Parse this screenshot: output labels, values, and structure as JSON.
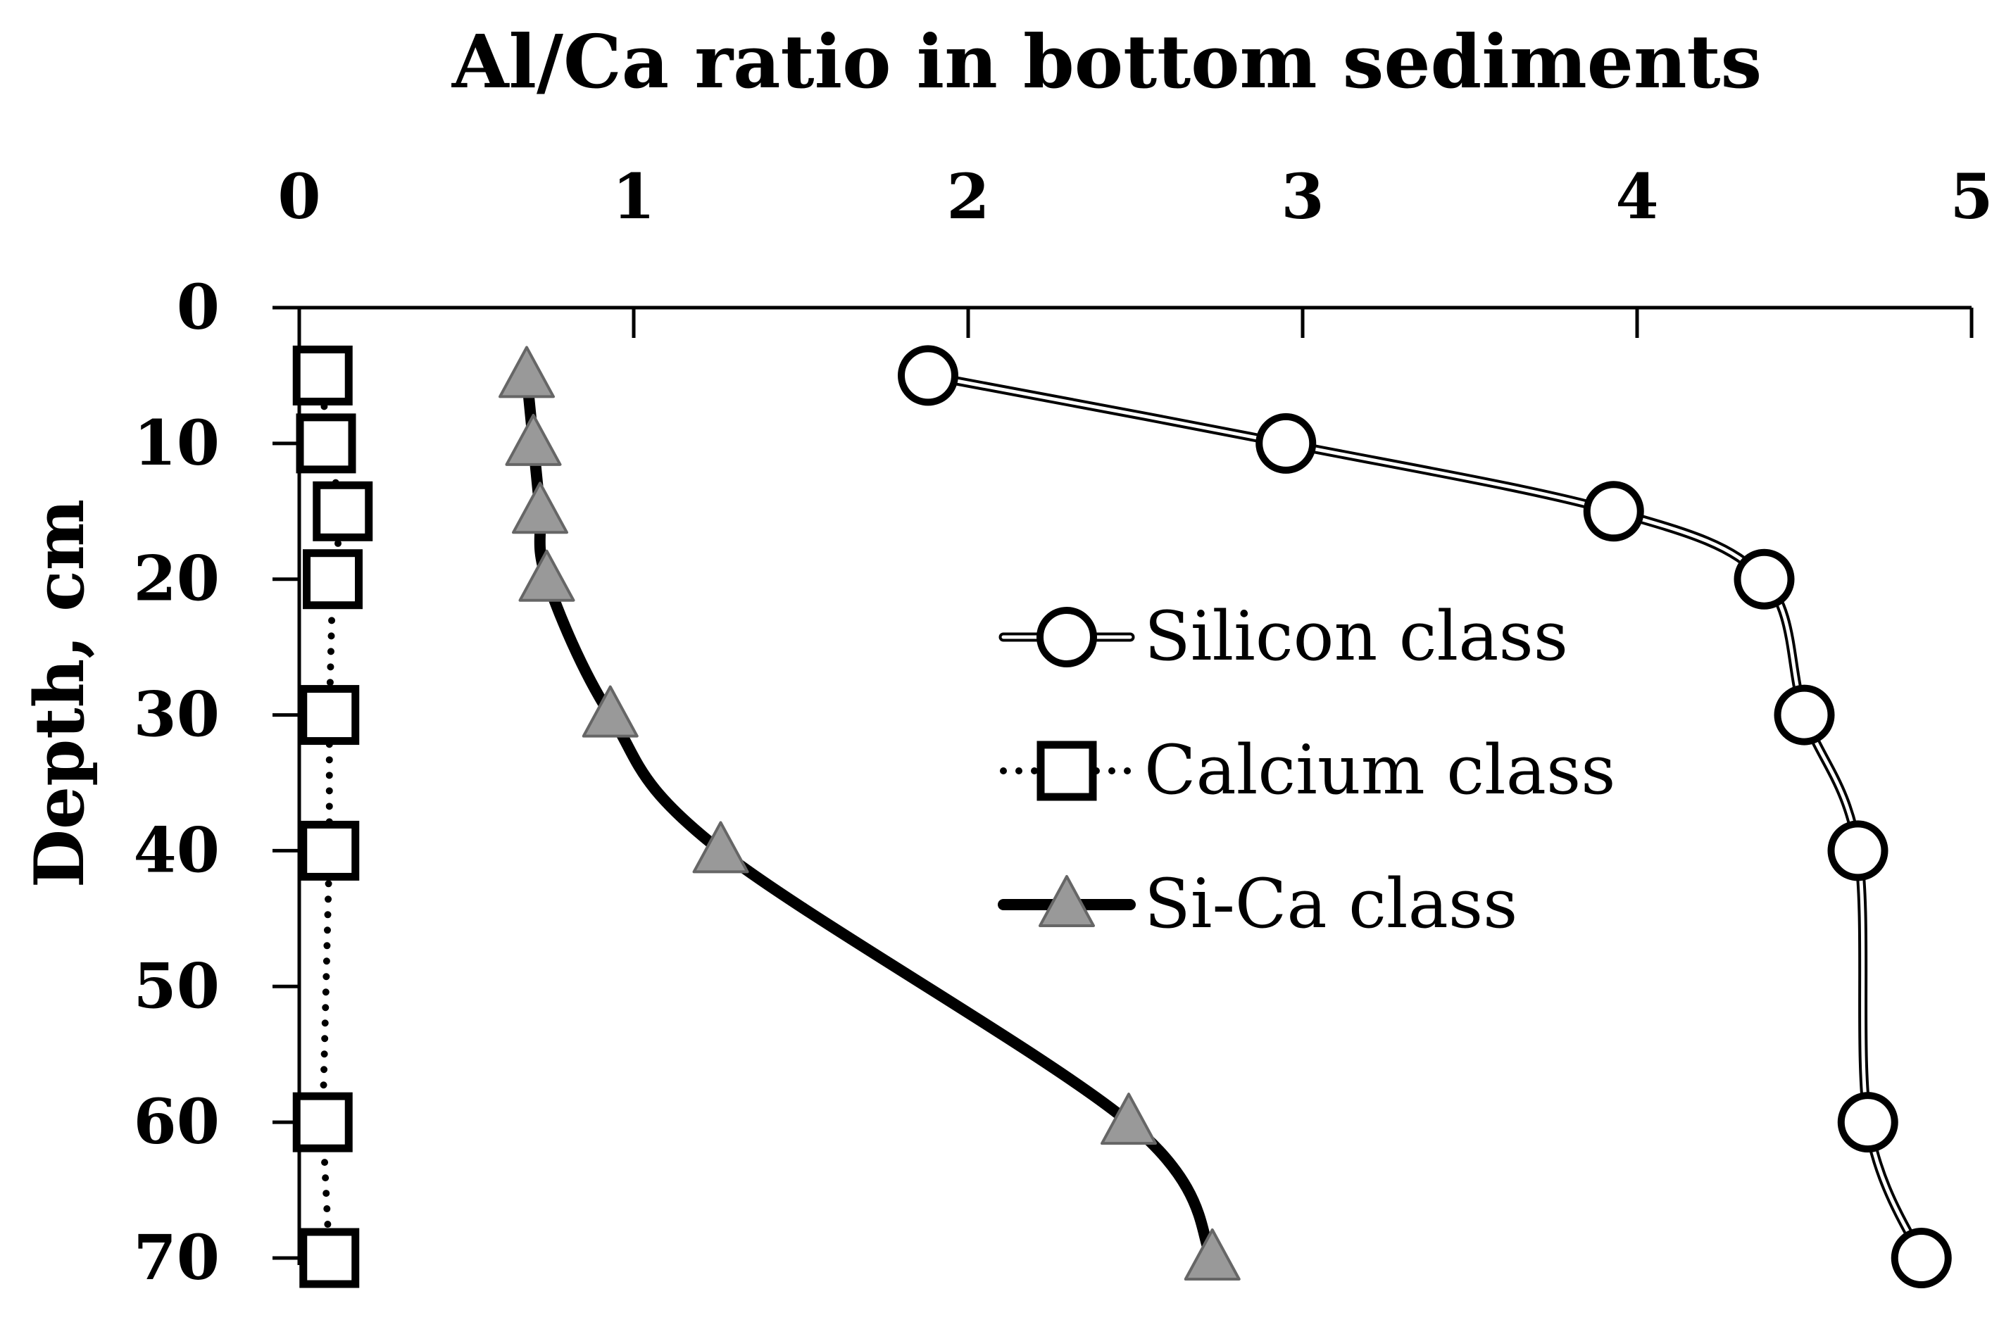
{
  "chart_data": {
    "type": "line",
    "title": "Al/Ca ratio in bottom sediments",
    "xlabel": "",
    "ylabel": "Depth, cm",
    "x_axis_position": "top",
    "y_inverted": true,
    "xlim": [
      0,
      5
    ],
    "ylim": [
      0,
      70
    ],
    "x_ticks": [
      "0",
      "1",
      "2",
      "3",
      "4",
      "5"
    ],
    "y_ticks": [
      "0",
      "10",
      "20",
      "30",
      "40",
      "50",
      "60",
      "70"
    ],
    "legend_position": "center-right",
    "series": [
      {
        "name": "Silicon class",
        "marker": "circle",
        "line_style": "double",
        "points": [
          [
            1.88,
            5
          ],
          [
            2.95,
            10
          ],
          [
            3.93,
            15
          ],
          [
            4.38,
            20
          ],
          [
            4.5,
            30
          ],
          [
            4.66,
            40
          ],
          [
            4.69,
            60
          ],
          [
            4.85,
            70
          ]
        ]
      },
      {
        "name": "Calcium class",
        "marker": "square",
        "line_style": "dotted",
        "points": [
          [
            0.07,
            5
          ],
          [
            0.08,
            10
          ],
          [
            0.13,
            15
          ],
          [
            0.1,
            20
          ],
          [
            0.09,
            30
          ],
          [
            0.09,
            40
          ],
          [
            0.07,
            60
          ],
          [
            0.09,
            70
          ]
        ]
      },
      {
        "name": "Si-Ca class",
        "marker": "triangle",
        "line_style": "solid",
        "points": [
          [
            0.68,
            5
          ],
          [
            0.7,
            10
          ],
          [
            0.72,
            15
          ],
          [
            0.74,
            20
          ],
          [
            0.93,
            30
          ],
          [
            1.26,
            40
          ],
          [
            2.48,
            60
          ],
          [
            2.73,
            70
          ]
        ]
      }
    ]
  }
}
